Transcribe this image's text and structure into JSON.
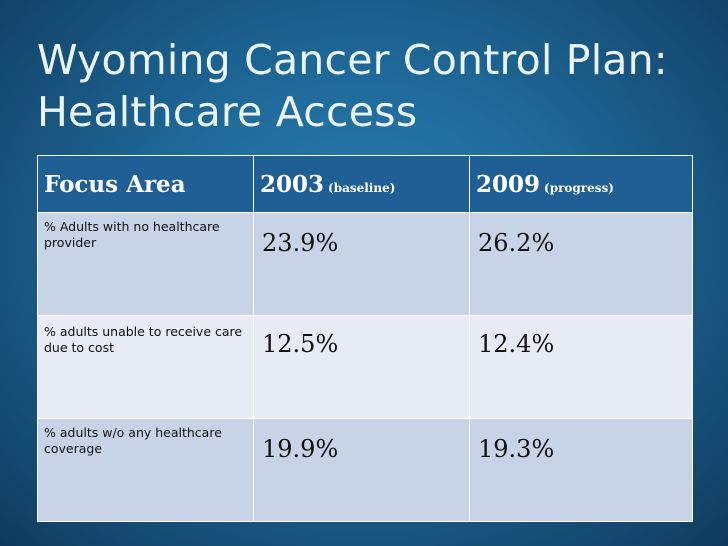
{
  "slide": {
    "title_line1": "Wyoming Cancer Control Plan:",
    "title_line2": "Healthcare Access"
  },
  "table": {
    "headers": [
      {
        "main": "Focus Area",
        "sub": ""
      },
      {
        "main": "2003",
        "sub": "(baseline)"
      },
      {
        "main": "2009",
        "sub": "(progress)"
      }
    ],
    "rows": [
      {
        "label": "% Adults with no healthcare provider",
        "v2003": "23.9%",
        "v2009": "26.2%"
      },
      {
        "label": "%  adults unable to receive care due to cost",
        "v2003": "12.5%",
        "v2009": "12.4%"
      },
      {
        "label": "% adults w/o any healthcare coverage",
        "v2003": "19.9%",
        "v2009": "19.3%"
      }
    ]
  },
  "colors": {
    "background": "#1f6a9a",
    "header_fill": "#1f5f95",
    "row_fill_dark": "#c9d3e8",
    "row_fill_light": "#e6ebf5"
  }
}
